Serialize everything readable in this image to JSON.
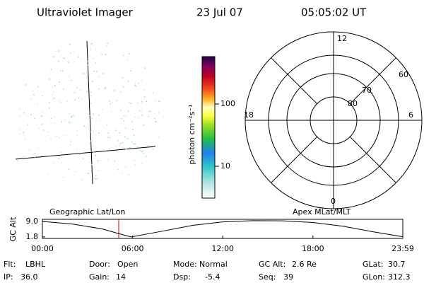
{
  "header": {
    "instrument": "Ultraviolet Imager",
    "date": "23 Jul 07",
    "time": "05:05:02 UT"
  },
  "colorbar": {
    "label": "photon cm⁻²s⁻¹",
    "ticks": [
      10,
      100
    ]
  },
  "polar": {
    "mlt_labels": [
      "12",
      "18",
      "6",
      "0"
    ],
    "lat_labels": [
      "60",
      "70",
      "80"
    ]
  },
  "map_labels": {
    "left": "Geographic Lat/Lon",
    "right": "Apex MLat/MLT"
  },
  "altitude_plot": {
    "ylabel": "GC Alt",
    "yticks": [
      {
        "value": 9,
        "label": "9.0"
      },
      1.8
    ],
    "ylim": [
      1.1,
      10.0
    ],
    "xlim": [
      0,
      23.98
    ],
    "xticks": [
      {
        "value": 0,
        "label": "00:00"
      },
      {
        "value": 6,
        "label": "06:00"
      },
      {
        "value": 12,
        "label": "12:00"
      },
      {
        "value": 18,
        "label": "18:00"
      },
      {
        "value": 23.98,
        "label": "23:59"
      }
    ],
    "x": [
      0,
      2,
      4,
      5,
      5.9,
      8,
      10,
      12,
      14,
      16,
      18,
      20,
      22,
      23.98
    ],
    "values": [
      9.0,
      7.8,
      5.5,
      3.5,
      1.8,
      4.5,
      7.2,
      8.8,
      9.4,
      9.3,
      8.5,
      6.8,
      4.2,
      1.9
    ]
  },
  "status": [
    [
      {
        "label": "Flt:",
        "value": "LBHL"
      },
      {
        "label": "Door:",
        "value": "Open"
      },
      {
        "label": "Mode:",
        "value": "Normal"
      },
      {
        "label": "GC Alt:",
        "value": "2.6 Re"
      },
      {
        "label": "GLat:",
        "value": "30.7"
      }
    ],
    [
      {
        "label": "IP:",
        "value": "36.0"
      },
      {
        "label": "Gain:",
        "value": "14"
      },
      {
        "label": "Dsp:",
        "value": "-5.4"
      },
      {
        "label": "Seq:",
        "value": "39"
      },
      {
        "label": "GLon:",
        "value": "312.3"
      }
    ]
  ]
}
